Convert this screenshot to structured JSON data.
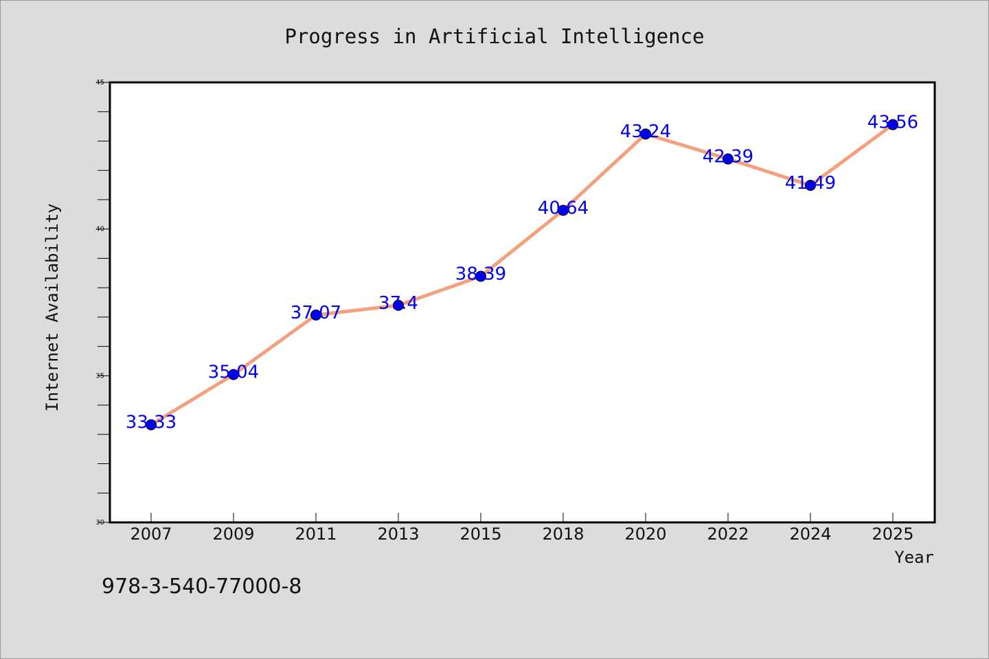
{
  "chart_data": {
    "type": "line",
    "title": "Progress in Artificial Intelligence",
    "xlabel": "Year",
    "ylabel": "Internet Availability",
    "categories": [
      "2007",
      "2009",
      "2011",
      "2013",
      "2015",
      "2018",
      "2020",
      "2022",
      "2024",
      "2025"
    ],
    "series": [
      {
        "values": [
          33.33,
          35.04,
          37.07,
          37.4,
          38.39,
          40.64,
          43.24,
          42.39,
          41.49,
          43.56
        ],
        "data_labels": [
          "33.33",
          "35.04",
          "37.07",
          "37.4",
          "38.39",
          "40.64",
          "43.24",
          "42.39",
          "41.49",
          "43.56"
        ],
        "line_color": "#f4a07f",
        "marker_color": "#0000ee"
      }
    ],
    "ylim": [
      30,
      45
    ],
    "yticks": [
      "30",
      "35",
      "40",
      "45"
    ],
    "grid": false,
    "label_color": "#0000ee"
  },
  "footer": {
    "text": "978-3-540-77000-8"
  },
  "colors": {
    "background": "#dcdcdc",
    "plot_background": "#ffffff"
  }
}
